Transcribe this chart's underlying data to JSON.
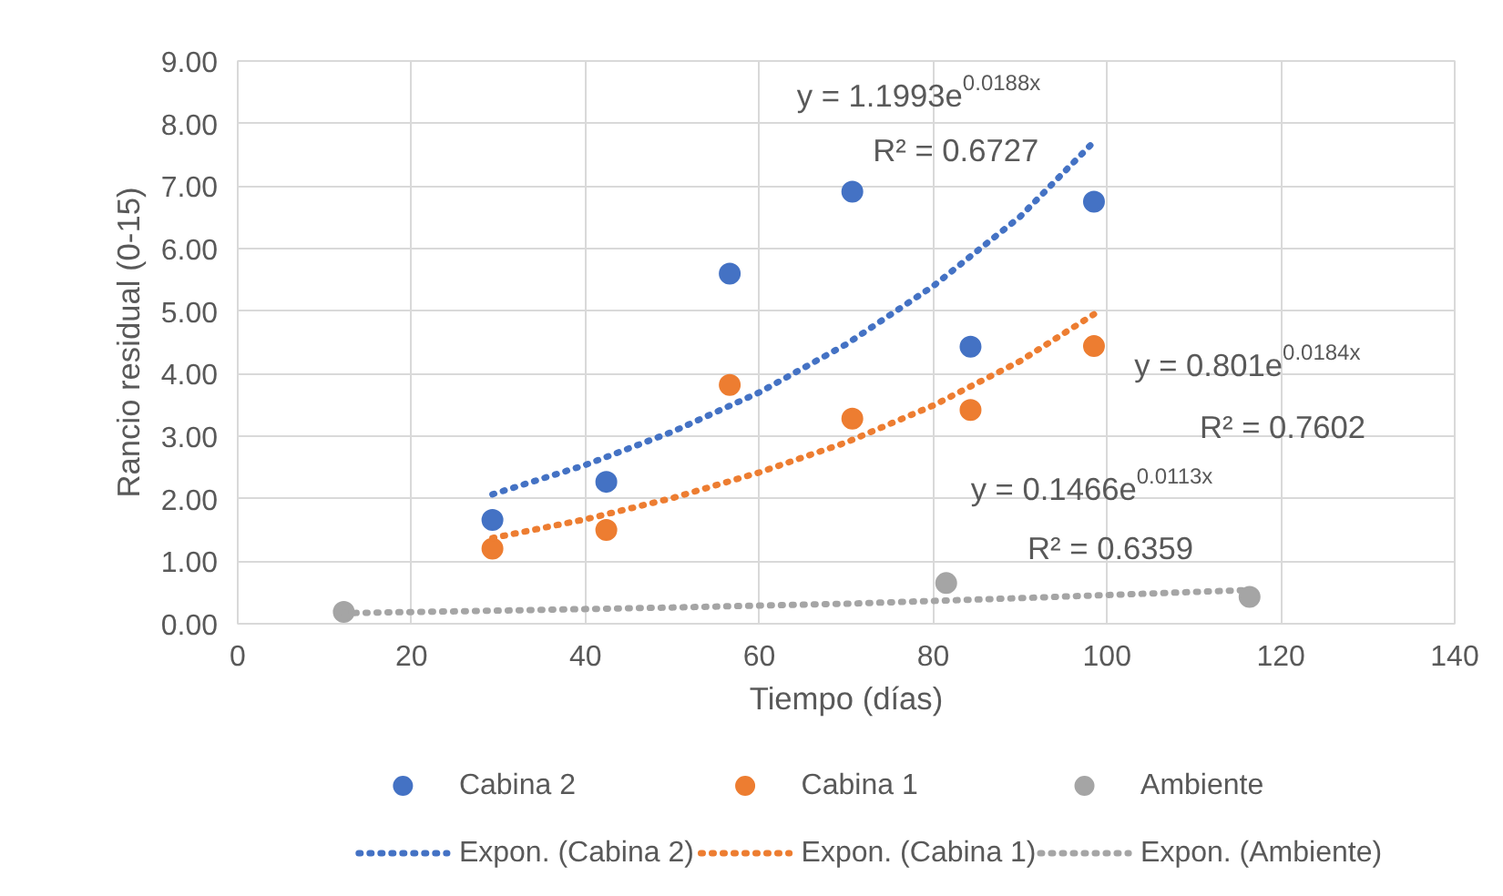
{
  "chart_data": {
    "type": "scatter",
    "xlabel": "Tiempo (días)",
    "ylabel": "Rancio residual (0-15)",
    "xlim": [
      0,
      140
    ],
    "xticks": [
      0,
      20,
      40,
      60,
      80,
      100,
      120,
      140
    ],
    "ylim": [
      0,
      9
    ],
    "yticks": [
      {
        "value": 0,
        "label": "0.00"
      },
      {
        "value": 1,
        "label": "1.00"
      },
      {
        "value": 2,
        "label": "2.00"
      },
      {
        "value": 3,
        "label": "3.00"
      },
      {
        "value": 4,
        "label": "4.00"
      },
      {
        "value": 5,
        "label": "5.00"
      },
      {
        "value": 6,
        "label": "6.00"
      },
      {
        "value": 7,
        "label": "7.00"
      },
      {
        "value": 8,
        "label": "8.00"
      },
      {
        "value": 9,
        "label": "9.00"
      }
    ],
    "grid": true,
    "legend": "bottom",
    "marker": "circle",
    "series": [
      {
        "name": "Cabina 2",
        "color": "#4472c4",
        "x": [
          29.3,
          42.4,
          56.6,
          70.7,
          84.3,
          98.5
        ],
        "values": [
          1.66,
          2.27,
          5.6,
          6.91,
          4.43,
          6.75
        ]
      },
      {
        "name": "Cabina 1",
        "color": "#ed7d31",
        "x": [
          29.3,
          42.4,
          56.6,
          70.7,
          84.3,
          98.5
        ],
        "values": [
          1.2,
          1.5,
          3.82,
          3.28,
          3.42,
          4.44
        ]
      },
      {
        "name": "Ambiente",
        "color": "#a5a5a5",
        "x": [
          12.2,
          81.5,
          116.4
        ],
        "values": [
          0.19,
          0.65,
          0.43
        ]
      },
      {
        "name": "Expon. (Cabina 2)",
        "type": "line",
        "line_style": "dotted",
        "marker": "none",
        "color": "#4472c4",
        "x": [
          29.3,
          40,
          50,
          60,
          70,
          80,
          90,
          98.5
        ],
        "values": [
          2.07,
          2.54,
          3.07,
          3.7,
          4.47,
          5.4,
          6.51,
          7.71
        ]
      },
      {
        "name": "Expon. (Cabina 1)",
        "type": "line",
        "line_style": "dotted",
        "marker": "none",
        "color": "#ed7d31",
        "x": [
          29.3,
          40,
          50,
          60,
          70,
          80,
          90,
          98.5
        ],
        "values": [
          1.37,
          1.67,
          2.01,
          2.42,
          2.9,
          3.49,
          4.2,
          4.95
        ]
      },
      {
        "name": "Expon. (Ambiente)",
        "type": "line",
        "line_style": "dotted",
        "marker": "none",
        "color": "#a5a5a5",
        "x": [
          12.2,
          30,
          50,
          70,
          90,
          116.4
        ],
        "values": [
          0.17,
          0.21,
          0.26,
          0.32,
          0.41,
          0.54
        ]
      }
    ],
    "annotations": [
      "y = 1.1993e$^{0.0188x}$",
      "R² = 0.6727",
      "y = 0.801e$^{0.0184x}$",
      "R² = 0.7602",
      "y = 0.1466e$^{0.0113x}$",
      "R² = 0.6359"
    ]
  }
}
